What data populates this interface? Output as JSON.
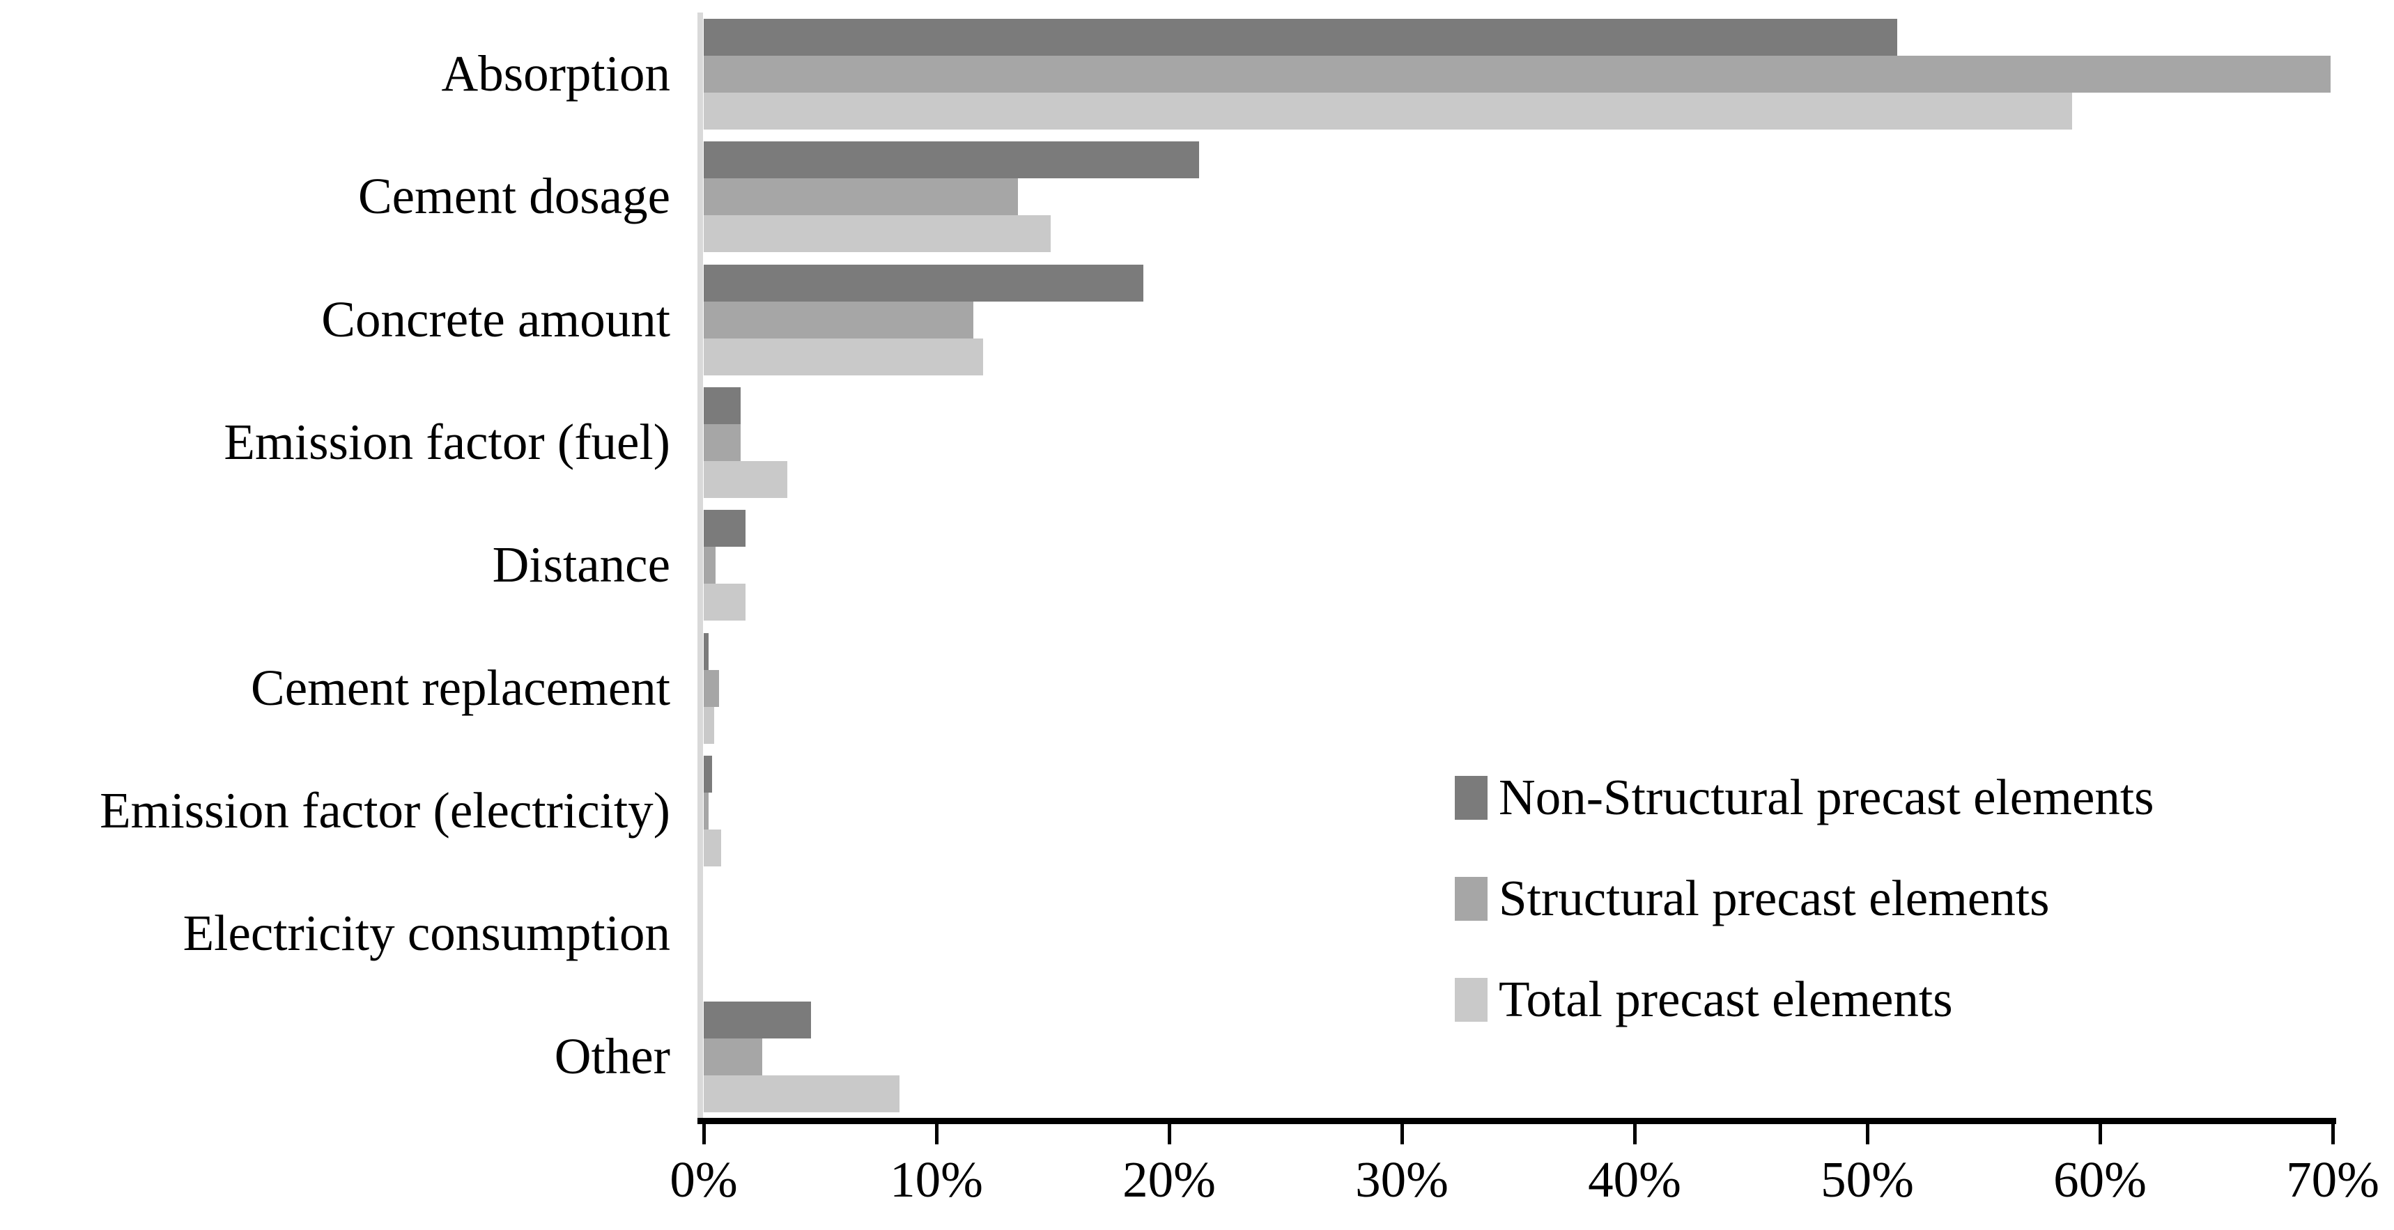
{
  "chart_data": {
    "type": "bar",
    "orientation": "horizontal",
    "title": "",
    "xlabel": "",
    "ylabel": "",
    "xlim": [
      0,
      70
    ],
    "grid": false,
    "legend_position": "inside-right-bottom",
    "x_ticks": [
      "0%",
      "10%",
      "20%",
      "30%",
      "40%",
      "50%",
      "60%",
      "70%"
    ],
    "categories": [
      "Absorption",
      "Cement dosage",
      "Concrete amount",
      "Emission factor (fuel)",
      "Distance",
      "Cement replacement",
      "Emission factor (electricity)",
      "Electricity consumption",
      "Other"
    ],
    "series": [
      {
        "name": "Non-Structural precast elements",
        "color": "#7b7b7b",
        "values": [
          51.3,
          21.3,
          18.9,
          1.6,
          1.8,
          0.2,
          0.35,
          0,
          4.6
        ]
      },
      {
        "name": "Structural precast elements",
        "color": "#a6a6a6",
        "values": [
          69.9,
          13.5,
          11.6,
          1.6,
          0.5,
          0.65,
          0.2,
          0,
          2.5
        ]
      },
      {
        "name": "Total precast elements",
        "color": "#c9c9c9",
        "values": [
          58.8,
          14.9,
          12.0,
          3.6,
          1.8,
          0.45,
          0.75,
          0,
          8.4
        ]
      }
    ],
    "axis_colors": {
      "y_axis_line": "#d9d9d9",
      "x_axis_line": "#000000"
    }
  }
}
